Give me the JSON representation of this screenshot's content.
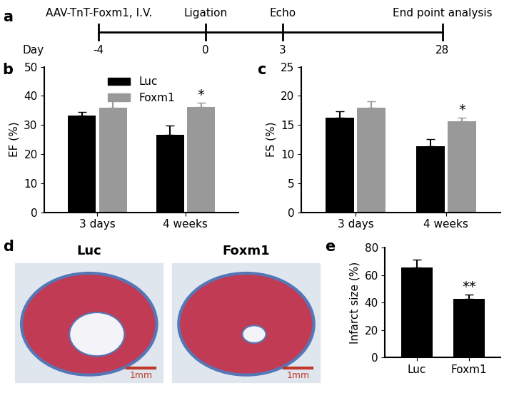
{
  "timeline": {
    "panel": "a",
    "label": "Day",
    "events": [
      {
        "day": -4,
        "label": "AAV-TnT-Foxm1, I.V."
      },
      {
        "day": 0,
        "label": "Ligation"
      },
      {
        "day": 3,
        "label": "Echo"
      },
      {
        "day": 28,
        "label": "End point analysis"
      }
    ]
  },
  "chart_data": [
    {
      "panel": "b",
      "type": "bar",
      "y_label": "EF (%)",
      "categories": [
        "3 days",
        "4 weeks"
      ],
      "series": [
        {
          "name": "Luc",
          "color": "#000000",
          "values": [
            33.2,
            26.6
          ],
          "errors": [
            1.2,
            3.3
          ],
          "significance": [
            null,
            null
          ]
        },
        {
          "name": "Foxm1",
          "color": "#999999",
          "values": [
            35.9,
            36.2
          ],
          "errors": [
            2.4,
            1.4
          ],
          "significance": [
            null,
            "*"
          ]
        }
      ],
      "ylim": [
        0,
        50
      ],
      "yticks": [
        0,
        10,
        20,
        30,
        40,
        50
      ],
      "legend": "upper center"
    },
    {
      "panel": "c",
      "type": "bar",
      "y_label": "FS (%)",
      "categories": [
        "3 days",
        "4 weeks"
      ],
      "series": [
        {
          "name": "Luc",
          "color": "#000000",
          "values": [
            16.2,
            11.4
          ],
          "errors": [
            1.1,
            1.2
          ],
          "significance": [
            null,
            null
          ]
        },
        {
          "name": "Foxm1",
          "color": "#999999",
          "values": [
            18.0,
            15.6
          ],
          "errors": [
            1.1,
            0.6
          ],
          "significance": [
            null,
            "*"
          ]
        }
      ],
      "ylim": [
        0,
        25
      ],
      "yticks": [
        0,
        5,
        10,
        15,
        20,
        25
      ]
    },
    {
      "panel": "e",
      "type": "bar",
      "y_label": "Infarct size (%)",
      "categories": [
        "Luc",
        "Foxm1"
      ],
      "color": "#000000",
      "values": [
        65.8,
        42.7
      ],
      "errors": [
        5.2,
        3.2
      ],
      "significance": [
        null,
        "**"
      ],
      "ylim": [
        0,
        80
      ],
      "yticks": [
        0,
        20,
        40,
        60,
        80
      ]
    }
  ],
  "histology": {
    "panel": "d",
    "images": [
      {
        "label": "Luc",
        "scale_bar": "1mm"
      },
      {
        "label": "Foxm1",
        "scale_bar": "1mm"
      }
    ]
  }
}
